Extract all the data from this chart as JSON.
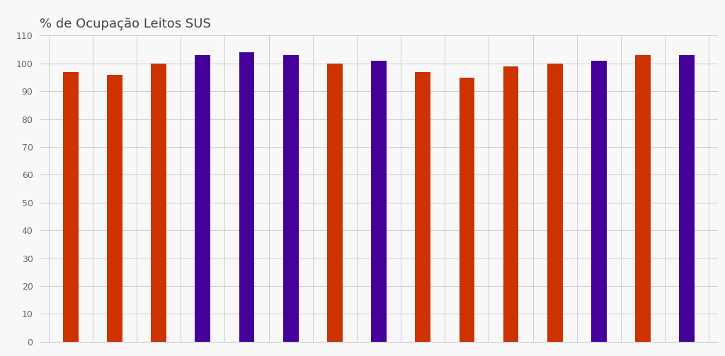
{
  "title": "% de Ocupação Leitos SUS",
  "values": [
    97,
    96,
    100,
    103,
    104,
    103,
    100,
    101,
    97,
    95,
    99,
    100,
    101,
    103,
    103
  ],
  "colors": [
    "#cc3300",
    "#cc3300",
    "#cc3300",
    "#440099",
    "#440099",
    "#440099",
    "#cc3300",
    "#440099",
    "#cc3300",
    "#cc3300",
    "#cc3300",
    "#cc3300",
    "#440099",
    "#cc3300",
    "#440099"
  ],
  "ylim": [
    0,
    110
  ],
  "yticks": [
    0,
    10,
    20,
    30,
    40,
    50,
    60,
    70,
    80,
    90,
    100,
    110
  ],
  "title_fontsize": 13,
  "background_color": "#f8f8f8",
  "plot_bg_color": "#f8f8f8",
  "grid_color": "#cccccc",
  "bar_width": 0.35
}
